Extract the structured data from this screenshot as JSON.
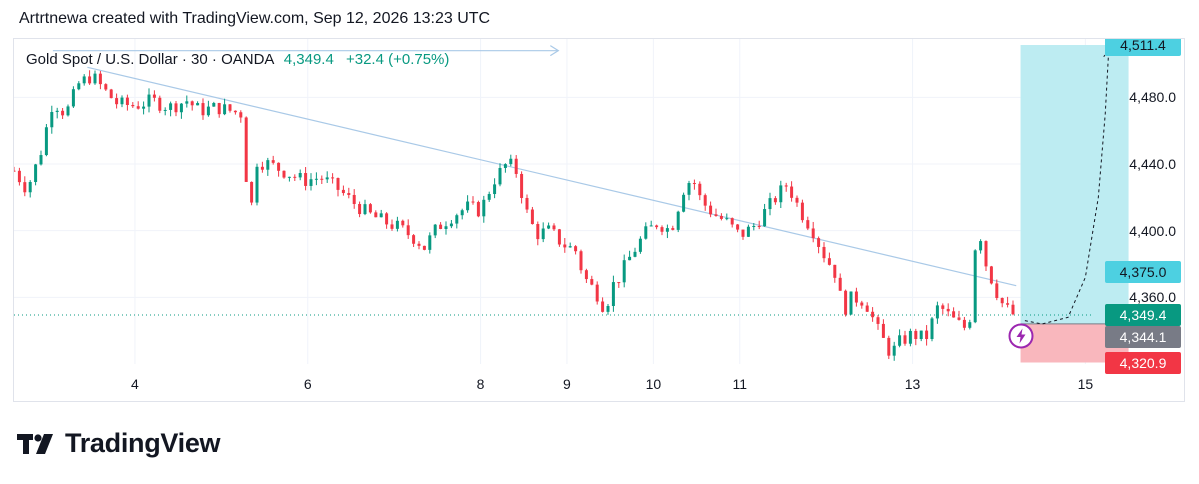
{
  "header": {
    "text": "Artrtnewa created with TradingView.com, Sep 12, 2026 13:23 UTC"
  },
  "symbol": {
    "name": "Gold Spot / U.S. Dollar · 30 · OANDA",
    "price": "4,349.4",
    "change": "+32.4 (+0.75%)"
  },
  "price_tags": [
    {
      "label": "4,511.4",
      "value": 4511.4,
      "bg": "#4dd0e1"
    },
    {
      "label": "4,375.0",
      "value": 4375.0,
      "bg": "#4dd0e1"
    },
    {
      "label": "4,349.4",
      "value": 4349.4,
      "bg": "#089981",
      "fg": "#ffffff"
    },
    {
      "label": "4,344.1",
      "value": 4344.1,
      "bg": "#787b86",
      "fg": "#ffffff"
    },
    {
      "label": "4,320.9",
      "value": 4320.9,
      "bg": "#f23645",
      "fg": "#ffffff"
    }
  ],
  "brand": {
    "name": "TradingView"
  },
  "chart_data": {
    "type": "candlestick",
    "title": "Gold Spot / U.S. Dollar · 30 · OANDA",
    "last_price": 4349.4,
    "change": "+32.4 (+0.75%)",
    "y_ticks": [
      4360.0,
      4400.0,
      4440.0,
      4480.0
    ],
    "y_tick_labels": [
      "4,360.0",
      "4,400.0",
      "4,440.0",
      "4,480.0"
    ],
    "ylim": [
      4320,
      4515
    ],
    "x_ticks": [
      4,
      6,
      8,
      9,
      10,
      11,
      13,
      15
    ],
    "x_tick_labels": [
      "4",
      "6",
      "8",
      "9",
      "10",
      "11",
      "13",
      "15"
    ],
    "xlim": [
      2.6,
      15.1
    ],
    "price_path": [
      [
        2.6,
        4436
      ],
      [
        2.75,
        4425
      ],
      [
        2.9,
        4445
      ],
      [
        3.05,
        4478
      ],
      [
        3.2,
        4470
      ],
      [
        3.35,
        4488
      ],
      [
        3.5,
        4493
      ],
      [
        3.65,
        4484
      ],
      [
        3.8,
        4476
      ],
      [
        4.0,
        4475
      ],
      [
        4.2,
        4478
      ],
      [
        4.4,
        4474
      ],
      [
        4.6,
        4478
      ],
      [
        4.75,
        4472
      ],
      [
        4.95,
        4474
      ],
      [
        5.1,
        4472
      ],
      [
        5.25,
        4470
      ],
      [
        5.32,
        4400
      ],
      [
        5.4,
        4442
      ],
      [
        5.55,
        4440
      ],
      [
        5.75,
        4435
      ],
      [
        5.95,
        4430
      ],
      [
        6.15,
        4432
      ],
      [
        6.35,
        4425
      ],
      [
        6.5,
        4418
      ],
      [
        6.7,
        4410
      ],
      [
        6.9,
        4405
      ],
      [
        7.05,
        4402
      ],
      [
        7.25,
        4395
      ],
      [
        7.35,
        4390
      ],
      [
        7.5,
        4402
      ],
      [
        7.7,
        4410
      ],
      [
        7.85,
        4414
      ],
      [
        8.0,
        4412
      ],
      [
        8.15,
        4430
      ],
      [
        8.3,
        4440
      ],
      [
        8.4,
        4438
      ],
      [
        8.55,
        4408
      ],
      [
        8.65,
        4398
      ],
      [
        8.8,
        4400
      ],
      [
        8.95,
        4392
      ],
      [
        9.1,
        4388
      ],
      [
        9.2,
        4372
      ],
      [
        9.35,
        4362
      ],
      [
        9.45,
        4352
      ],
      [
        9.5,
        4365
      ],
      [
        9.6,
        4372
      ],
      [
        9.75,
        4386
      ],
      [
        9.9,
        4398
      ],
      [
        10.05,
        4405
      ],
      [
        10.2,
        4400
      ],
      [
        10.35,
        4425
      ],
      [
        10.45,
        4432
      ],
      [
        10.55,
        4418
      ],
      [
        10.7,
        4410
      ],
      [
        10.85,
        4405
      ],
      [
        11.0,
        4397
      ],
      [
        11.15,
        4402
      ],
      [
        11.3,
        4412
      ],
      [
        11.45,
        4422
      ],
      [
        11.55,
        4428
      ],
      [
        11.7,
        4412
      ],
      [
        11.85,
        4400
      ],
      [
        11.95,
        4388
      ],
      [
        12.1,
        4375
      ],
      [
        12.2,
        4352
      ],
      [
        12.3,
        4360
      ],
      [
        12.45,
        4358
      ],
      [
        12.6,
        4340
      ],
      [
        12.75,
        4326
      ],
      [
        12.85,
        4333
      ],
      [
        13.0,
        4338
      ],
      [
        13.15,
        4335
      ],
      [
        13.3,
        4355
      ],
      [
        13.4,
        4350
      ],
      [
        13.5,
        4345
      ],
      [
        13.6,
        4342
      ],
      [
        13.65,
        4335
      ],
      [
        13.7,
        4388
      ],
      [
        13.8,
        4398
      ],
      [
        13.85,
        4380
      ],
      [
        13.95,
        4366
      ],
      [
        14.05,
        4355
      ],
      [
        14.15,
        4350
      ],
      [
        14.2,
        4349.4
      ]
    ],
    "trendline": {
      "from": [
        3.45,
        4498
      ],
      "to": [
        14.2,
        4367
      ]
    },
    "top_arrow": {
      "from": [
        3.05,
        4508
      ],
      "to": [
        8.9,
        4508
      ]
    },
    "position": {
      "type": "long",
      "x_start": 14.25,
      "x_end": 15.5,
      "entry": 4344.1,
      "target": 4511.4,
      "stop": 4320.9,
      "target_label": 4375.0
    },
    "projection_path": [
      [
        14.3,
        4346
      ],
      [
        14.5,
        4344
      ],
      [
        14.8,
        4348
      ],
      [
        15.0,
        4372
      ],
      [
        15.15,
        4420
      ],
      [
        15.23,
        4470
      ],
      [
        15.27,
        4508
      ]
    ],
    "current_price_line": 4349.4,
    "grid": true,
    "colors": {
      "up": "#089981",
      "down": "#f23645",
      "target_zone": "#bdecf2",
      "stop_zone": "#f9b7bd",
      "trendline": "#a9c9e7"
    }
  }
}
